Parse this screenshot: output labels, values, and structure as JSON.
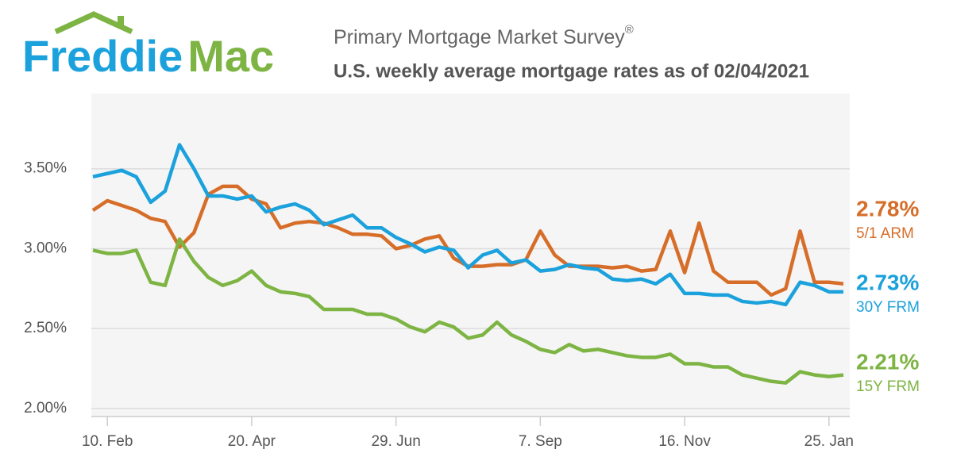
{
  "chart_data": {
    "type": "line",
    "brand": [
      "Freddie",
      "Mac"
    ],
    "title": "Primary Mortgage Market Survey",
    "title_mark": "®",
    "subtitle": "U.S. weekly average mortgage rates as of 02/04/2021",
    "categories": [
      null,
      "10. Feb",
      null,
      null,
      null,
      null,
      null,
      null,
      null,
      null,
      null,
      "20. Apr",
      null,
      null,
      null,
      null,
      null,
      null,
      null,
      null,
      null,
      "29. Jun",
      null,
      null,
      null,
      null,
      null,
      null,
      null,
      null,
      null,
      "7. Sep",
      null,
      null,
      null,
      null,
      null,
      null,
      null,
      null,
      null,
      "16. Nov",
      null,
      null,
      null,
      null,
      null,
      null,
      null,
      null,
      null,
      "25. Jan",
      null
    ],
    "ylim": [
      1.95,
      3.97
    ],
    "yticks": [
      {
        "value": 2,
        "label": "2.00%"
      },
      {
        "value": 2.5,
        "label": "2.50%"
      },
      {
        "value": 3,
        "label": "3.00%"
      },
      {
        "value": 3.5,
        "label": "3.50%"
      }
    ],
    "grid": true,
    "series": [
      {
        "name": "5/1 ARM",
        "color": "#d66e2a",
        "last_label": "2.78%",
        "values": [
          3.24,
          3.3,
          3.27,
          3.24,
          3.19,
          3.17,
          3.01,
          3.1,
          3.34,
          3.39,
          3.39,
          3.31,
          3.28,
          3.13,
          3.16,
          3.17,
          3.16,
          3.13,
          3.09,
          3.09,
          3.08,
          3.0,
          3.02,
          3.06,
          3.08,
          2.94,
          2.89,
          2.89,
          2.9,
          2.9,
          2.93,
          3.11,
          2.96,
          2.89,
          2.89,
          2.89,
          2.88,
          2.89,
          2.86,
          2.87,
          3.11,
          2.85,
          3.16,
          2.86,
          2.79,
          2.79,
          2.79,
          2.71,
          2.75,
          3.11,
          2.79,
          2.79,
          2.78
        ]
      },
      {
        "name": "30Y FRM",
        "color": "#1ba1dc",
        "last_label": "2.73%",
        "values": [
          3.45,
          3.47,
          3.49,
          3.45,
          3.29,
          3.36,
          3.65,
          3.5,
          3.33,
          3.33,
          3.31,
          3.33,
          3.23,
          3.26,
          3.28,
          3.24,
          3.15,
          3.18,
          3.21,
          3.13,
          3.13,
          3.07,
          3.03,
          2.98,
          3.01,
          2.99,
          2.88,
          2.96,
          2.99,
          2.91,
          2.93,
          2.86,
          2.87,
          2.9,
          2.88,
          2.87,
          2.81,
          2.8,
          2.81,
          2.78,
          2.84,
          2.72,
          2.72,
          2.71,
          2.71,
          2.67,
          2.66,
          2.67,
          2.65,
          2.79,
          2.77,
          2.73,
          2.73
        ]
      },
      {
        "name": "15Y FRM",
        "color": "#7db443",
        "last_label": "2.21%",
        "values": [
          2.99,
          2.97,
          2.97,
          2.99,
          2.79,
          2.77,
          3.06,
          2.92,
          2.82,
          2.77,
          2.8,
          2.86,
          2.77,
          2.73,
          2.72,
          2.7,
          2.62,
          2.62,
          2.62,
          2.59,
          2.59,
          2.56,
          2.51,
          2.48,
          2.54,
          2.51,
          2.44,
          2.46,
          2.54,
          2.46,
          2.42,
          2.37,
          2.35,
          2.4,
          2.36,
          2.37,
          2.35,
          2.33,
          2.32,
          2.32,
          2.34,
          2.28,
          2.28,
          2.26,
          2.26,
          2.21,
          2.19,
          2.17,
          2.16,
          2.23,
          2.21,
          2.2,
          2.21
        ]
      }
    ]
  }
}
